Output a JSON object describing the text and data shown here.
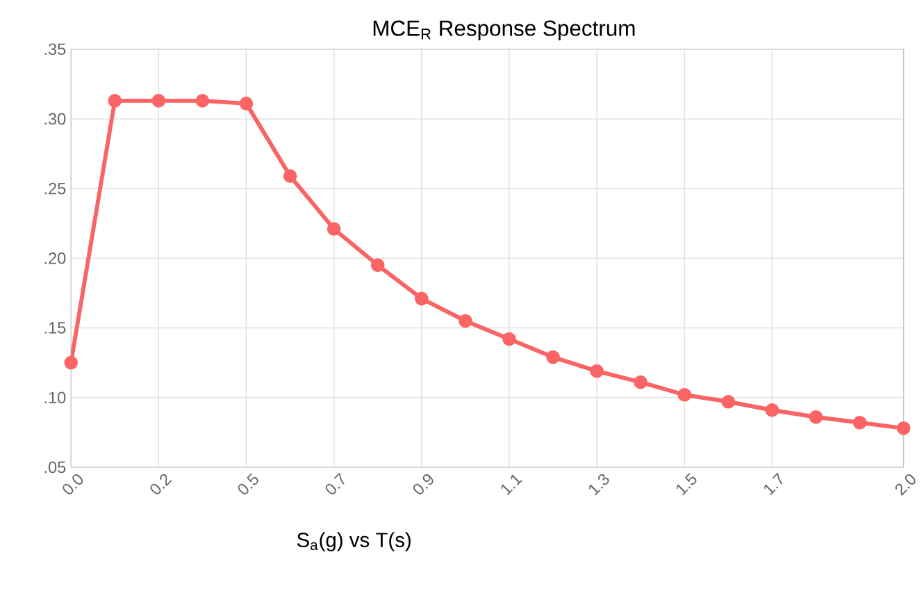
{
  "chart_data": {
    "type": "line",
    "title": "MCE$_{R}$ Response Spectrum",
    "xlabel": "S$_{a}$(g) vs T(s)",
    "categories": [
      "0.0",
      null,
      "0.2",
      null,
      "0.5",
      null,
      "0.7",
      null,
      "0.9",
      null,
      "1.1",
      null,
      "1.3",
      null,
      "1.5",
      null,
      "1.7",
      null,
      null,
      "2.0"
    ],
    "series": [
      {
        "color": "#fa6464",
        "values": [
          0.125,
          0.313,
          0.313,
          0.313,
          0.311,
          0.259,
          0.221,
          0.195,
          0.171,
          0.155,
          0.142,
          0.129,
          0.119,
          0.111,
          0.102,
          0.097,
          0.091,
          0.086,
          0.082,
          0.078
        ]
      }
    ],
    "ylim": [
      0.05,
      0.35
    ],
    "yticks": [
      {
        "value": 0.05,
        "label": ".05"
      },
      {
        "value": 0.1,
        "label": ".10"
      },
      {
        "value": 0.15,
        "label": ".15"
      },
      {
        "value": 0.2,
        "label": ".20"
      },
      {
        "value": 0.25,
        "label": ".25"
      },
      {
        "value": 0.3,
        "label": ".30"
      },
      {
        "value": 0.35,
        "label": ".35"
      }
    ],
    "grid": true,
    "marker": "circle",
    "line_style": "solid"
  }
}
